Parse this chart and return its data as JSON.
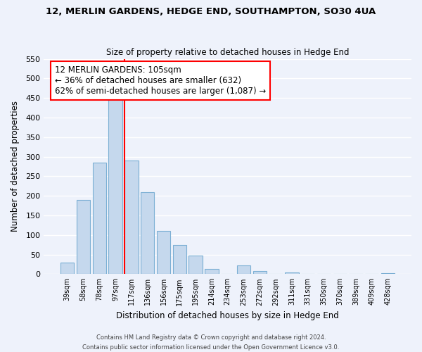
{
  "title": "12, MERLIN GARDENS, HEDGE END, SOUTHAMPTON, SO30 4UA",
  "subtitle": "Size of property relative to detached houses in Hedge End",
  "xlabel": "Distribution of detached houses by size in Hedge End",
  "ylabel": "Number of detached properties",
  "bar_labels": [
    "39sqm",
    "58sqm",
    "78sqm",
    "97sqm",
    "117sqm",
    "136sqm",
    "156sqm",
    "175sqm",
    "195sqm",
    "214sqm",
    "234sqm",
    "253sqm",
    "272sqm",
    "292sqm",
    "311sqm",
    "331sqm",
    "350sqm",
    "370sqm",
    "389sqm",
    "409sqm",
    "428sqm"
  ],
  "bar_values": [
    30,
    190,
    285,
    460,
    290,
    210,
    110,
    75,
    47,
    13,
    0,
    22,
    8,
    0,
    5,
    0,
    0,
    0,
    0,
    0,
    3
  ],
  "bar_color": "#c5d8ed",
  "bar_edge_color": "#7bafd4",
  "reference_line_color": "red",
  "annotation_title": "12 MERLIN GARDENS: 105sqm",
  "annotation_line1": "← 36% of detached houses are smaller (632)",
  "annotation_line2": "62% of semi-detached houses are larger (1,087) →",
  "annotation_box_color": "white",
  "annotation_box_edge_color": "red",
  "ylim": [
    0,
    550
  ],
  "yticks": [
    0,
    50,
    100,
    150,
    200,
    250,
    300,
    350,
    400,
    450,
    500,
    550
  ],
  "footer_line1": "Contains HM Land Registry data © Crown copyright and database right 2024.",
  "footer_line2": "Contains public sector information licensed under the Open Government Licence v3.0.",
  "background_color": "#eef2fb",
  "grid_color": "#ffffff"
}
